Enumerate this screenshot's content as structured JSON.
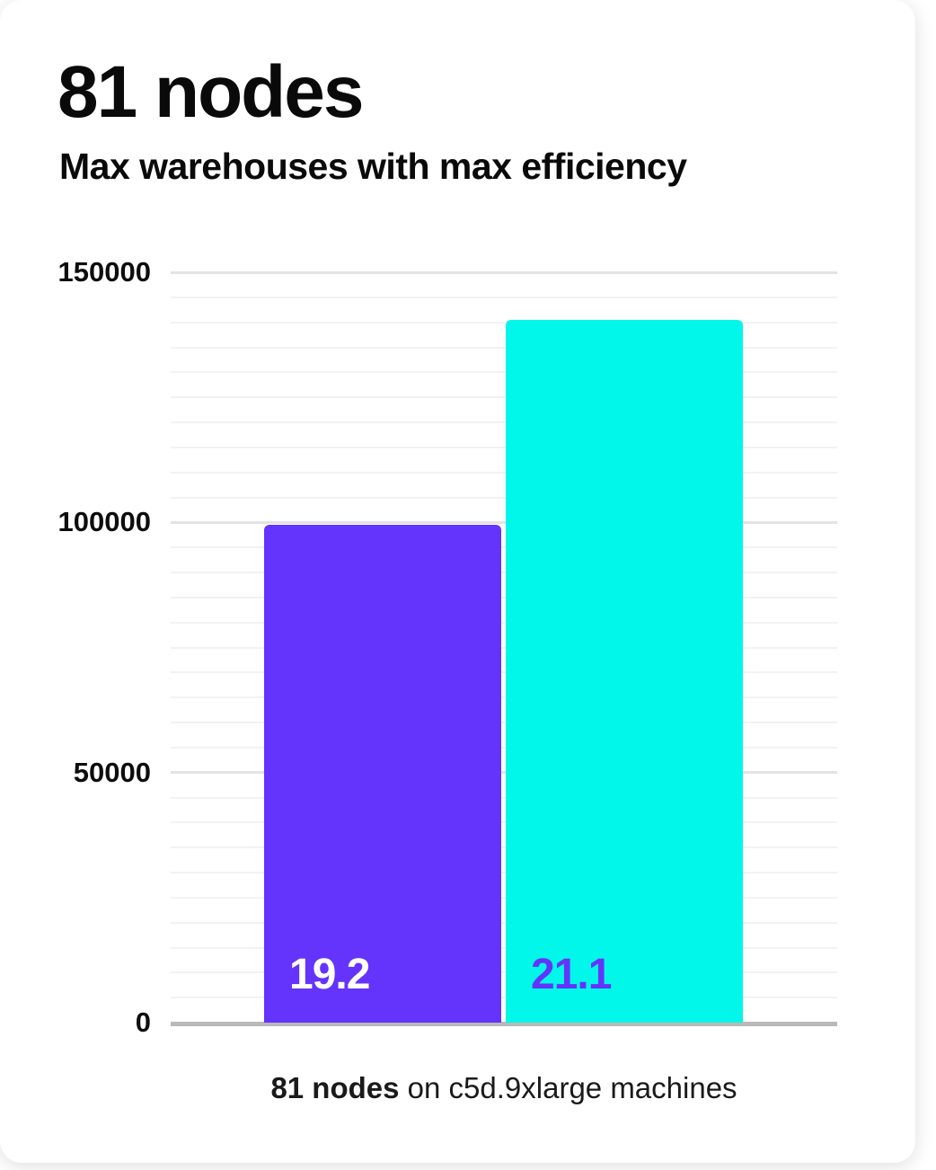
{
  "card": {
    "title": "81 nodes",
    "subtitle": "Max warehouses with max efficiency",
    "caption_bold": "81 nodes",
    "caption_rest": " on c5d.9xlarge machines"
  },
  "colors": {
    "bar_purple": "#6433fc",
    "bar_cyan": "#00f7e9",
    "label_on_purple": "#ffffff",
    "label_on_cyan": "#6433fc",
    "grid_minor": "#f2f2f2",
    "grid_major": "#e3e3e3",
    "axis_line": "#b9b9b9",
    "text": "#0a0a0a"
  },
  "chart_data": {
    "type": "bar",
    "title": "81 nodes",
    "subtitle": "Max warehouses with max efficiency",
    "categories": [
      "bar-1",
      "bar-2"
    ],
    "values": [
      99600,
      140400
    ],
    "bar_labels": [
      "19.2",
      "21.1"
    ],
    "bar_colors": [
      "#6433fc",
      "#00f7e9"
    ],
    "bar_label_colors": [
      "#ffffff",
      "#6433fc"
    ],
    "xlabel": "",
    "ylabel": "",
    "ylim": [
      0,
      150000
    ],
    "yticks": [
      0,
      50000,
      100000,
      150000
    ],
    "ytick_labels": [
      "0",
      "50000",
      "100000",
      "150000"
    ],
    "minor_gridline_step": 5000,
    "major_gridline_step": 50000,
    "grid": "horizontal",
    "legend": "none",
    "caption": "81 nodes on c5d.9xlarge machines"
  }
}
